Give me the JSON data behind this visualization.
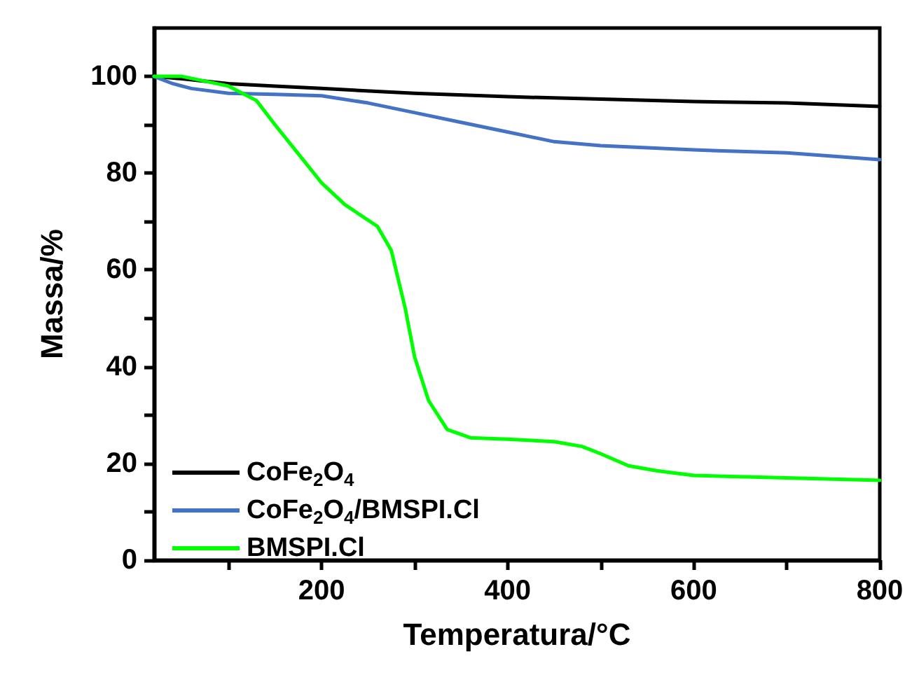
{
  "chart_data": {
    "type": "line",
    "xlabel": "Temperatura/°C",
    "ylabel": "Massa/%",
    "xlim": [
      20,
      800
    ],
    "ylim": [
      0,
      110
    ],
    "xticks": [
      {
        "value": 100,
        "label": null
      },
      200,
      {
        "value": 300,
        "label": null
      },
      400,
      {
        "value": 500,
        "label": null
      },
      600,
      {
        "value": 700,
        "label": null
      },
      800
    ],
    "yticks": [
      0,
      {
        "value": 10,
        "label": null
      },
      20,
      {
        "value": 30,
        "label": null
      },
      40,
      {
        "value": 50,
        "label": null
      },
      60,
      {
        "value": 70,
        "label": null
      },
      80,
      {
        "value": 90,
        "label": null
      },
      100
    ],
    "grid": false,
    "legend": "bottom left",
    "marker": "none",
    "line_style": "solid",
    "series": [
      {
        "name": "CoFe$_{2}$O$_{4}$",
        "color": "#000000",
        "x": [
          20,
          50,
          100,
          150,
          200,
          300,
          400,
          500,
          600,
          700,
          800
        ],
        "values": [
          100,
          99.5,
          98.5,
          98,
          97.5,
          96.5,
          95.8,
          95.3,
          94.8,
          94.5,
          93.8
        ]
      },
      {
        "name": "CoFe$_{2}$O$_{4}$/BMSPI.Cl",
        "color": "#4472c4",
        "x": [
          20,
          40,
          60,
          100,
          150,
          200,
          250,
          300,
          350,
          400,
          450,
          500,
          600,
          700,
          800
        ],
        "values": [
          100,
          98.5,
          97.5,
          96.5,
          96.3,
          96,
          94.5,
          92.5,
          90.5,
          88.5,
          86.5,
          85.7,
          84.8,
          84.2,
          82.8
        ]
      },
      {
        "name": "BMSPI.Cl",
        "color": "#00ff00",
        "x": [
          20,
          50,
          100,
          130,
          150,
          175,
          200,
          225,
          260,
          275,
          290,
          300,
          315,
          335,
          360,
          400,
          450,
          480,
          500,
          530,
          560,
          600,
          700,
          800
        ],
        "values": [
          100,
          100,
          98,
          95,
          90,
          84,
          78,
          73.5,
          69,
          64,
          52,
          42,
          33,
          27,
          25.3,
          25,
          24.5,
          23.5,
          22,
          19.5,
          18.5,
          17.5,
          17,
          16.5
        ]
      }
    ]
  }
}
